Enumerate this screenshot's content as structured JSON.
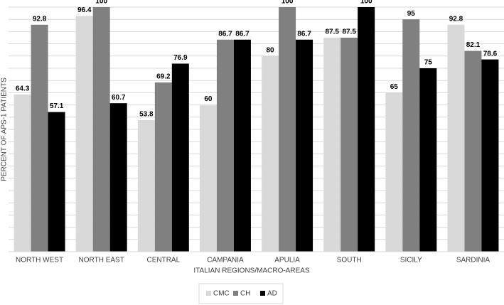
{
  "chart_data": {
    "type": "bar",
    "x_label": "ITALIAN REGIONS/MACRO-AREAS",
    "y_label": "PERCENT OF APS-1 PATIENTS",
    "categories": [
      "NORTH WEST",
      "NORTH EAST",
      "CENTRAL",
      "CAMPANIA",
      "APULIA",
      "SOUTH",
      "SICILY",
      "SARDINIA"
    ],
    "series": [
      {
        "name": "CMC",
        "color": "#d9d9d9",
        "values": [
          64.3,
          96.4,
          53.8,
          60,
          80,
          87.5,
          65,
          92.8
        ]
      },
      {
        "name": "CH",
        "color": "#808080",
        "values": [
          92.8,
          100,
          69.2,
          86.7,
          100,
          87.5,
          95,
          82.1
        ]
      },
      {
        "name": "AD",
        "color": "#000000",
        "values": [
          57.1,
          60.7,
          76.9,
          86.7,
          86.7,
          100,
          75,
          78.6
        ]
      }
    ],
    "ylim": [
      0,
      100
    ],
    "yticks": [
      0,
      5,
      10,
      15,
      20,
      25,
      30,
      35,
      40,
      45,
      50,
      55,
      60,
      65,
      70,
      75,
      80,
      85,
      90,
      95,
      100
    ],
    "grid": true,
    "legend": "bottom"
  }
}
